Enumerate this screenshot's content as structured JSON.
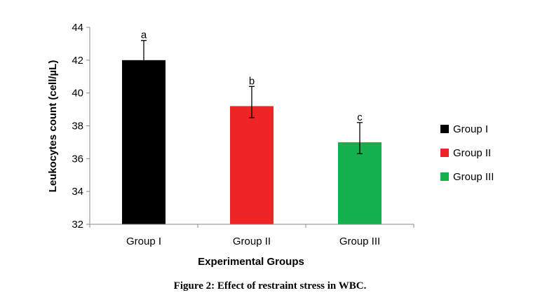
{
  "chart_data": {
    "type": "bar",
    "categories": [
      "Group I",
      "Group II",
      "Group III"
    ],
    "values": [
      42,
      39.2,
      37
    ],
    "error_plus": [
      1.2,
      1.2,
      1.2
    ],
    "error_minus": [
      0,
      0.7,
      0.7
    ],
    "significance_labels": [
      "a",
      "b",
      "c"
    ],
    "colors": [
      "#000000",
      "#ee2426",
      "#13b04b"
    ],
    "xlabel": "Experimental Groups",
    "ylabel": "Leukocytes count (cell/µL)",
    "ylim": [
      32,
      44
    ],
    "yticks": [
      32,
      34,
      36,
      38,
      40,
      42,
      44
    ],
    "legend": [
      "Group I",
      "Group II",
      "Group III"
    ],
    "legend_position": "right",
    "grid": false
  },
  "caption": "Figure 2: Effect of restraint stress in WBC."
}
